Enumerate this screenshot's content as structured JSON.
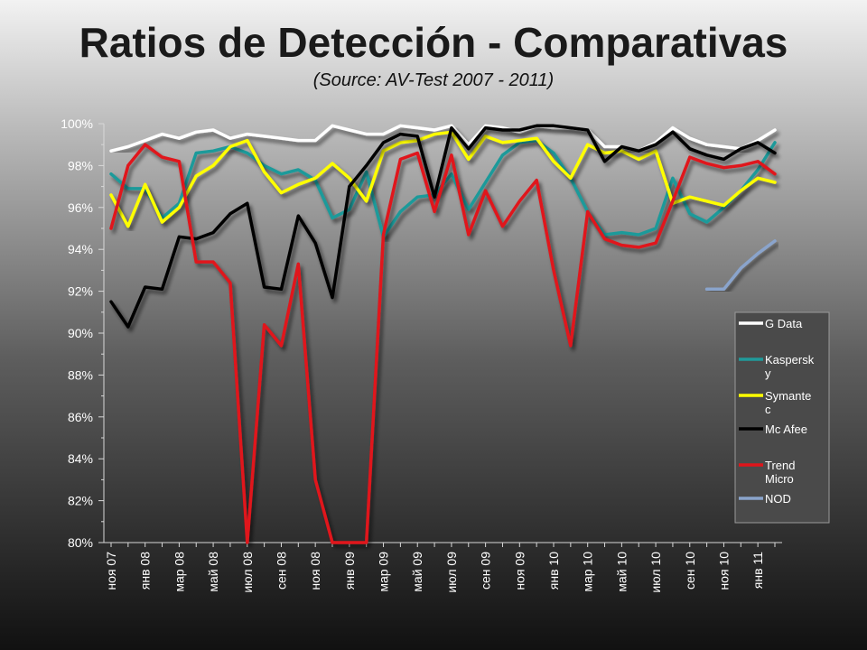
{
  "title": "Ratios de Detección - Comparativas",
  "subtitle": "(Source: AV-Test 2007 - 2011)",
  "chart_data": {
    "type": "line",
    "title": "Ratios de Detección - Comparativas",
    "subtitle": "(Source: AV-Test 2007 - 2011)",
    "ylim": [
      80,
      100
    ],
    "y_ticks": [
      "80%",
      "82%",
      "84%",
      "86%",
      "88%",
      "90%",
      "92%",
      "94%",
      "96%",
      "98%",
      "100%"
    ],
    "x_tick_labels": [
      "ноя 07",
      "янв 08",
      "мар 08",
      "май 08",
      "июл 08",
      "сен 08",
      "ноя 08",
      "янв 09",
      "мар 09",
      "май 09",
      "июл 09",
      "сен 09",
      "ноя 09",
      "янв 10",
      "мар 10",
      "май 10",
      "июл 10",
      "сен 10",
      "ноя 10",
      "янв 11"
    ],
    "x_points": 40,
    "legend_position": "right",
    "series": [
      {
        "name": "G Data",
        "color": "#ffffff",
        "values": [
          98.7,
          98.9,
          99.2,
          99.5,
          99.3,
          99.6,
          99.7,
          99.3,
          99.5,
          99.4,
          99.3,
          99.2,
          99.2,
          99.9,
          99.7,
          99.5,
          99.5,
          99.9,
          99.8,
          99.7,
          99.9,
          99.0,
          99.9,
          99.8,
          99.6,
          99.9,
          99.8,
          99.8,
          99.7,
          98.9,
          98.9,
          98.7,
          99.1,
          99.8,
          99.3,
          99.0,
          98.9,
          98.8,
          99.2,
          99.7
        ]
      },
      {
        "name": "Kaspersk\ny",
        "color": "#1f9a9a",
        "values": [
          97.6,
          96.9,
          96.9,
          95.5,
          96.2,
          98.6,
          98.7,
          98.9,
          98.6,
          98.0,
          97.6,
          97.8,
          97.3,
          95.5,
          95.9,
          97.7,
          94.6,
          95.8,
          96.5,
          96.6,
          97.6,
          95.9,
          97.2,
          98.5,
          99.1,
          99.2,
          98.6,
          97.4,
          95.8,
          94.7,
          94.8,
          94.7,
          95.0,
          97.4,
          95.7,
          95.3,
          96.0,
          96.8,
          97.8,
          99.1
        ]
      },
      {
        "name": "Symante\nc",
        "color": "#ffff00",
        "values": [
          96.6,
          95.1,
          97.1,
          95.3,
          96.0,
          97.5,
          98.0,
          98.9,
          99.2,
          97.7,
          96.7,
          97.1,
          97.4,
          98.1,
          97.4,
          96.3,
          98.7,
          99.1,
          99.2,
          99.5,
          99.6,
          98.3,
          99.4,
          99.1,
          99.2,
          99.3,
          98.2,
          97.4,
          99.0,
          98.6,
          98.7,
          98.3,
          98.7,
          96.2,
          96.5,
          96.3,
          96.1,
          96.8,
          97.4,
          97.2
        ]
      },
      {
        "name": "Mc Afee",
        "color": "#000000",
        "values": [
          91.5,
          90.3,
          92.2,
          92.1,
          94.6,
          94.5,
          94.8,
          95.7,
          96.2,
          92.2,
          92.1,
          95.6,
          94.3,
          91.7,
          97.0,
          98.0,
          99.1,
          99.5,
          99.4,
          96.5,
          99.8,
          98.8,
          99.8,
          99.7,
          99.7,
          99.9,
          99.9,
          99.8,
          99.7,
          98.2,
          98.9,
          98.7,
          99.0,
          99.6,
          98.8,
          98.5,
          98.3,
          98.8,
          99.1,
          98.6
        ]
      },
      {
        "name": "Trend\nMicro",
        "color": "#e0141a",
        "values": [
          95.0,
          98.0,
          99.0,
          98.4,
          98.2,
          93.4,
          93.4,
          92.4,
          80.0,
          90.4,
          89.4,
          93.3,
          83.0,
          80.0,
          80.0,
          80.0,
          94.7,
          98.3,
          98.6,
          95.8,
          98.5,
          94.7,
          96.8,
          95.1,
          96.3,
          97.3,
          93.0,
          89.4,
          95.8,
          94.5,
          94.2,
          94.1,
          94.3,
          96.3,
          98.4,
          98.1,
          97.9,
          98.0,
          98.2,
          97.6
        ]
      },
      {
        "name": "NOD",
        "color": "#8aa4cc",
        "values": [
          null,
          null,
          null,
          null,
          null,
          null,
          null,
          null,
          null,
          null,
          null,
          null,
          null,
          null,
          null,
          null,
          null,
          null,
          null,
          null,
          null,
          null,
          null,
          null,
          null,
          null,
          null,
          null,
          null,
          null,
          null,
          null,
          null,
          null,
          null,
          92.1,
          92.1,
          93.1,
          93.8,
          94.4
        ]
      }
    ]
  }
}
